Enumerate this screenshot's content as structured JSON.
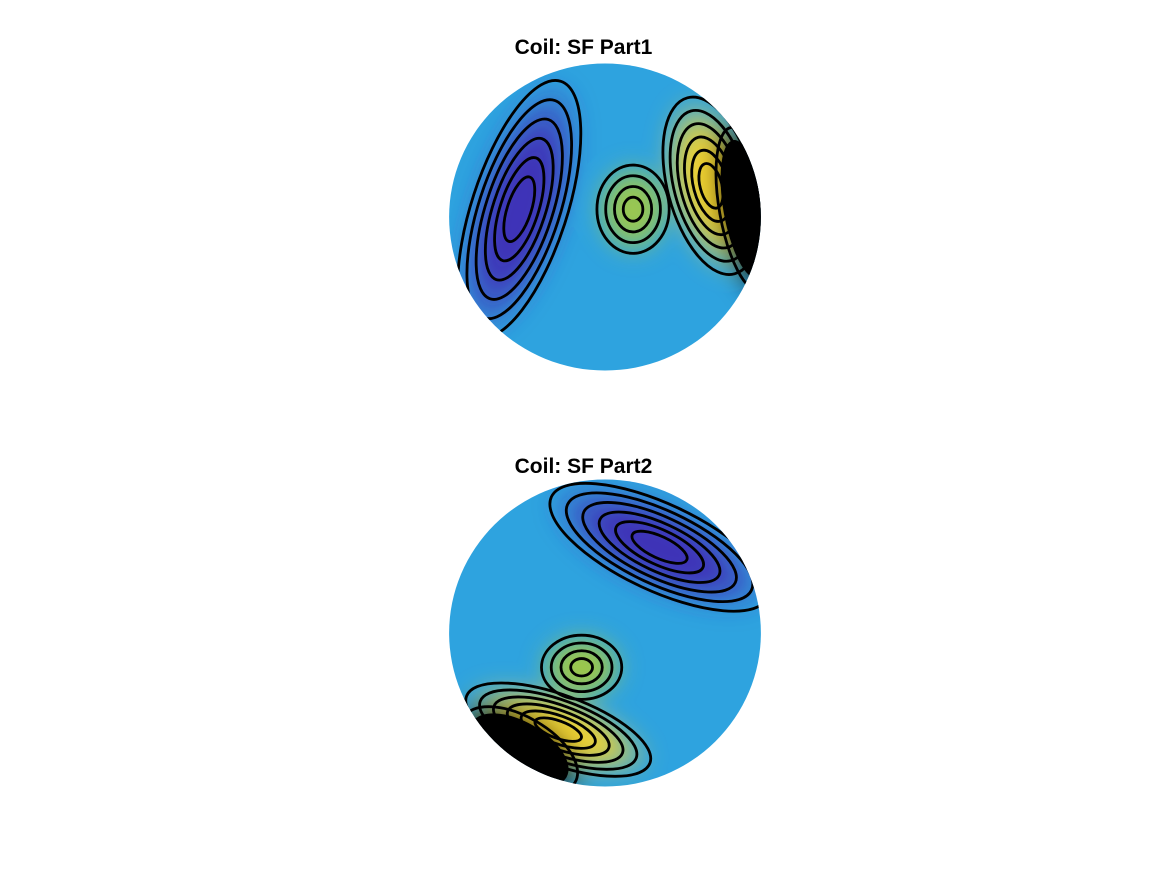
{
  "chart_data": [
    {
      "type": "heatmap",
      "title": "Coil: SF Part1",
      "colormap": [
        "#3e26a8",
        "#4a4cea",
        "#2d8df6",
        "#27aeda",
        "#3fbfaa",
        "#7ac853",
        "#bfc02c",
        "#f6c93a",
        "#f9fb15",
        "#000000"
      ],
      "background_color": "#2ea3df",
      "blobs": [
        {
          "kind": "negative",
          "peak": -1.0,
          "color": "#3f2fb6",
          "center": [
            -0.55,
            -0.05
          ],
          "extent": [
            0.22,
            0.62
          ],
          "rotation": 18
        },
        {
          "kind": "positive_mid",
          "peak": 0.55,
          "color": "#9ec94a",
          "center": [
            0.18,
            -0.05
          ],
          "extent": [
            0.18,
            0.22
          ],
          "rotation": 0
        },
        {
          "kind": "positive_high",
          "peak": 1.0,
          "color": "#f9d52c",
          "center": [
            0.68,
            -0.2
          ],
          "extent": [
            0.2,
            0.42
          ],
          "rotation": -15
        },
        {
          "kind": "saturated",
          "peak": 1.2,
          "color": "#000000",
          "center": [
            0.9,
            -0.05
          ],
          "extent": [
            0.14,
            0.45
          ],
          "rotation": -10
        }
      ],
      "contour_levels": 11
    },
    {
      "type": "heatmap",
      "title": "Coil: SF Part2",
      "colormap": [
        "#3e26a8",
        "#4a4cea",
        "#2d8df6",
        "#27aeda",
        "#3fbfaa",
        "#7ac853",
        "#bfc02c",
        "#f6c93a",
        "#f9fb15",
        "#000000"
      ],
      "background_color": "#2ea3df",
      "blobs": [
        {
          "kind": "negative",
          "peak": -1.0,
          "color": "#3f2fb6",
          "center": [
            0.35,
            -0.55
          ],
          "extent": [
            0.55,
            0.2
          ],
          "rotation": 25
        },
        {
          "kind": "positive_mid",
          "peak": 0.55,
          "color": "#a2c944",
          "center": [
            -0.15,
            0.22
          ],
          "extent": [
            0.2,
            0.16
          ],
          "rotation": 0
        },
        {
          "kind": "positive_high",
          "peak": 1.0,
          "color": "#f9d52c",
          "center": [
            -0.3,
            0.62
          ],
          "extent": [
            0.45,
            0.16
          ],
          "rotation": 20
        },
        {
          "kind": "saturated",
          "peak": 1.2,
          "color": "#000000",
          "center": [
            -0.55,
            0.75
          ],
          "extent": [
            0.35,
            0.18
          ],
          "rotation": 30
        }
      ],
      "contour_levels": 11
    }
  ]
}
